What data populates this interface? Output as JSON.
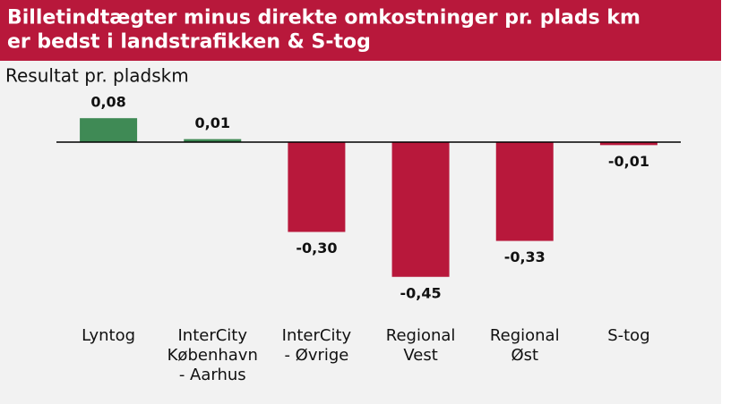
{
  "chart_data": {
    "type": "bar",
    "title": "Billetindtægter minus direkte omkostninger pr. plads km\ner bedst i landstrafikken & S-tog",
    "subtitle": "Resultat pr. pladskm",
    "categories": [
      "Lyntog",
      "InterCity\nKøbenhavn\n- Aarhus",
      "InterCity\n- Øvrige",
      "Regional\nVest",
      "Regional\nØst",
      "S-tog"
    ],
    "values": [
      0.08,
      0.01,
      -0.3,
      -0.45,
      -0.33,
      -0.01
    ],
    "value_labels": [
      "0,08",
      "0,01",
      "-0,30",
      "-0,45",
      "-0,33",
      "-0,01"
    ],
    "colors": [
      "#3f8a55",
      "#3f8a55",
      "#b8183b",
      "#b8183b",
      "#b8183b",
      "#b8183b"
    ],
    "ylim": [
      -0.5,
      0.1
    ]
  }
}
